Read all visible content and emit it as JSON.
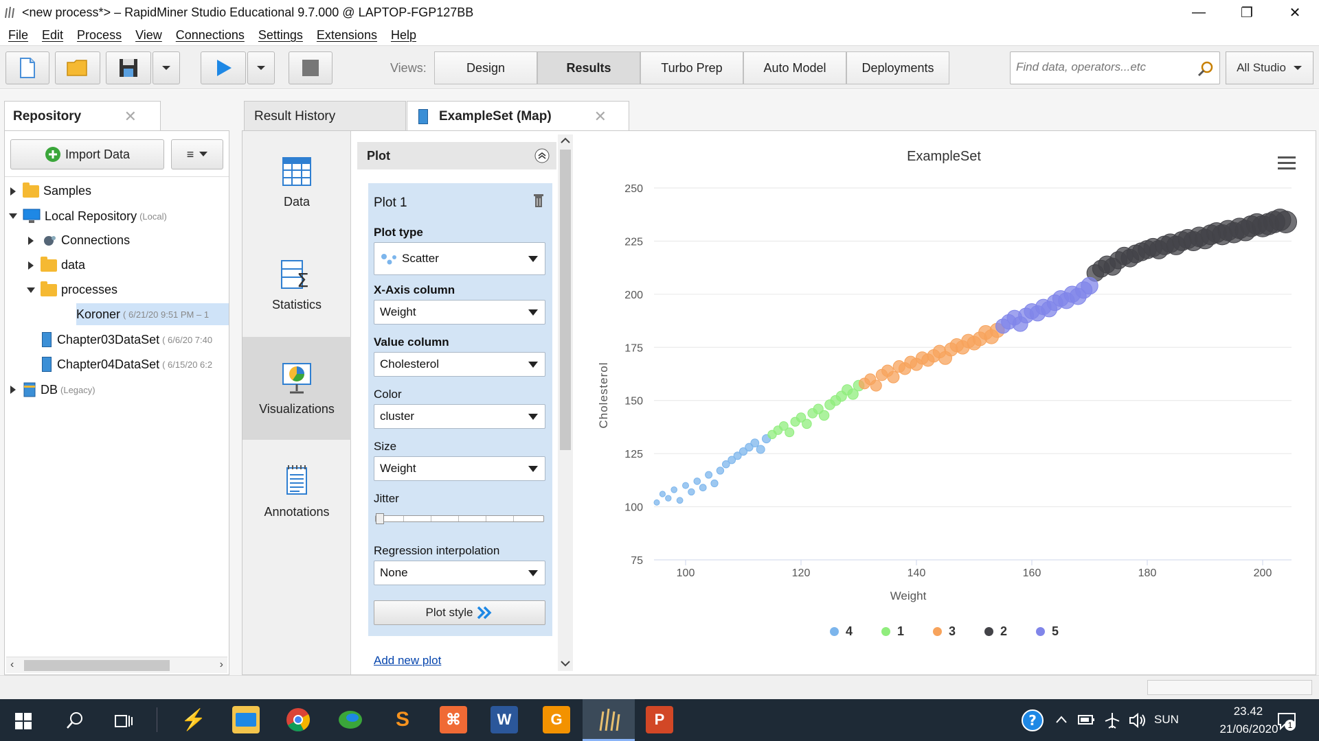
{
  "window": {
    "title": "<new process*> – RapidMiner Studio Educational 9.7.000 @ LAPTOP-FGP127BB"
  },
  "menu": [
    "File",
    "Edit",
    "Process",
    "View",
    "Connections",
    "Settings",
    "Extensions",
    "Help"
  ],
  "toolbar": {
    "views_label": "Views:",
    "views": [
      "Design",
      "Results",
      "Turbo Prep",
      "Auto Model",
      "Deployments"
    ],
    "active_view": "Results",
    "search_placeholder": "Find data, operators...etc",
    "scope": "All Studio"
  },
  "repository": {
    "tab": "Repository",
    "import_label": "Import Data",
    "menu_glyph": "≡",
    "items": [
      {
        "label": "Samples",
        "meta": ""
      },
      {
        "label": "Local Repository",
        "meta": "(Local)"
      },
      {
        "label": "Connections",
        "meta": ""
      },
      {
        "label": "data",
        "meta": ""
      },
      {
        "label": "processes",
        "meta": ""
      },
      {
        "label": "Koroner",
        "meta": "( 6/21/20 9:51 PM – 1"
      },
      {
        "label": "Chapter03DataSet",
        "meta": "( 6/6/20 7:40"
      },
      {
        "label": "Chapter04DataSet",
        "meta": "( 6/15/20 6:2"
      },
      {
        "label": "DB",
        "meta": "(Legacy)"
      }
    ]
  },
  "results": {
    "tabs": [
      {
        "label": "Result History"
      },
      {
        "label": "ExampleSet (Map)"
      }
    ],
    "nav": [
      "Data",
      "Statistics",
      "Visualizations",
      "Annotations"
    ],
    "active_nav": "Visualizations"
  },
  "plot_panel": {
    "header": "Plot",
    "plot_name": "Plot 1",
    "plot_type_label": "Plot type",
    "plot_type": "Scatter",
    "x_label": "X-Axis column",
    "x_value": "Weight",
    "value_label": "Value column",
    "value_value": "Cholesterol",
    "color_label": "Color",
    "color_value": "cluster",
    "size_label": "Size",
    "size_value": "Weight",
    "jitter_label": "Jitter",
    "jitter": 0,
    "regression_label": "Regression interpolation",
    "regression_value": "None",
    "plot_style": "Plot style",
    "add_plot": "Add new plot"
  },
  "chart_data": {
    "type": "scatter",
    "title": "ExampleSet",
    "xlabel": "Weight",
    "ylabel": "Cholesterol",
    "xlim": [
      95,
      205
    ],
    "ylim": [
      75,
      250
    ],
    "xticks": [
      100,
      120,
      140,
      160,
      180,
      200
    ],
    "yticks": [
      75,
      100,
      125,
      150,
      175,
      200,
      225,
      250
    ],
    "grid": true,
    "legend_position": "bottom",
    "series": [
      {
        "name": "4",
        "color": "#7cb5ec",
        "points": [
          [
            95,
            102
          ],
          [
            96,
            106
          ],
          [
            97,
            104
          ],
          [
            98,
            108
          ],
          [
            99,
            103
          ],
          [
            100,
            110
          ],
          [
            101,
            107
          ],
          [
            102,
            112
          ],
          [
            103,
            109
          ],
          [
            104,
            115
          ],
          [
            105,
            111
          ],
          [
            106,
            117
          ],
          [
            107,
            120
          ],
          [
            108,
            122
          ],
          [
            109,
            124
          ],
          [
            110,
            126
          ],
          [
            111,
            128
          ],
          [
            112,
            130
          ],
          [
            113,
            127
          ],
          [
            114,
            132
          ]
        ]
      },
      {
        "name": "1",
        "color": "#90ed7d",
        "points": [
          [
            115,
            134
          ],
          [
            116,
            136
          ],
          [
            117,
            138
          ],
          [
            118,
            135
          ],
          [
            119,
            140
          ],
          [
            120,
            142
          ],
          [
            121,
            139
          ],
          [
            122,
            144
          ],
          [
            123,
            146
          ],
          [
            124,
            143
          ],
          [
            125,
            148
          ],
          [
            126,
            150
          ],
          [
            127,
            152
          ],
          [
            128,
            155
          ],
          [
            129,
            153
          ],
          [
            130,
            157
          ]
        ]
      },
      {
        "name": "3",
        "color": "#f7a35c",
        "points": [
          [
            131,
            158
          ],
          [
            132,
            160
          ],
          [
            133,
            157
          ],
          [
            134,
            162
          ],
          [
            135,
            164
          ],
          [
            136,
            161
          ],
          [
            137,
            166
          ],
          [
            138,
            165
          ],
          [
            139,
            168
          ],
          [
            140,
            167
          ],
          [
            141,
            170
          ],
          [
            142,
            169
          ],
          [
            143,
            171
          ],
          [
            144,
            173
          ],
          [
            145,
            170
          ],
          [
            146,
            174
          ],
          [
            147,
            176
          ],
          [
            148,
            175
          ],
          [
            149,
            178
          ],
          [
            150,
            177
          ],
          [
            151,
            179
          ],
          [
            152,
            182
          ],
          [
            153,
            180
          ],
          [
            154,
            183
          ]
        ]
      },
      {
        "name": "2",
        "color": "#434348",
        "points": [
          [
            171,
            210
          ],
          [
            172,
            212
          ],
          [
            173,
            214
          ],
          [
            174,
            213
          ],
          [
            175,
            216
          ],
          [
            176,
            218
          ],
          [
            177,
            217
          ],
          [
            178,
            219
          ],
          [
            179,
            220
          ],
          [
            180,
            221
          ],
          [
            181,
            222
          ],
          [
            182,
            221
          ],
          [
            183,
            223
          ],
          [
            184,
            224
          ],
          [
            185,
            223
          ],
          [
            186,
            225
          ],
          [
            187,
            226
          ],
          [
            188,
            225
          ],
          [
            189,
            227
          ],
          [
            190,
            226
          ],
          [
            191,
            228
          ],
          [
            192,
            229
          ],
          [
            193,
            228
          ],
          [
            194,
            230
          ],
          [
            195,
            229
          ],
          [
            196,
            231
          ],
          [
            197,
            230
          ],
          [
            198,
            232
          ],
          [
            199,
            233
          ],
          [
            200,
            232
          ],
          [
            201,
            233
          ],
          [
            202,
            234
          ],
          [
            203,
            235
          ],
          [
            204,
            234
          ]
        ]
      },
      {
        "name": "5",
        "color": "#8085e9",
        "points": [
          [
            155,
            185
          ],
          [
            156,
            187
          ],
          [
            157,
            189
          ],
          [
            158,
            186
          ],
          [
            159,
            190
          ],
          [
            160,
            192
          ],
          [
            161,
            191
          ],
          [
            162,
            194
          ],
          [
            163,
            193
          ],
          [
            164,
            196
          ],
          [
            165,
            198
          ],
          [
            166,
            197
          ],
          [
            167,
            200
          ],
          [
            168,
            199
          ],
          [
            169,
            202
          ],
          [
            170,
            204
          ]
        ]
      }
    ]
  },
  "taskbar": {
    "lang": "SUN",
    "time": "23.42",
    "date": "21/06/2020",
    "notif_count": "1"
  }
}
